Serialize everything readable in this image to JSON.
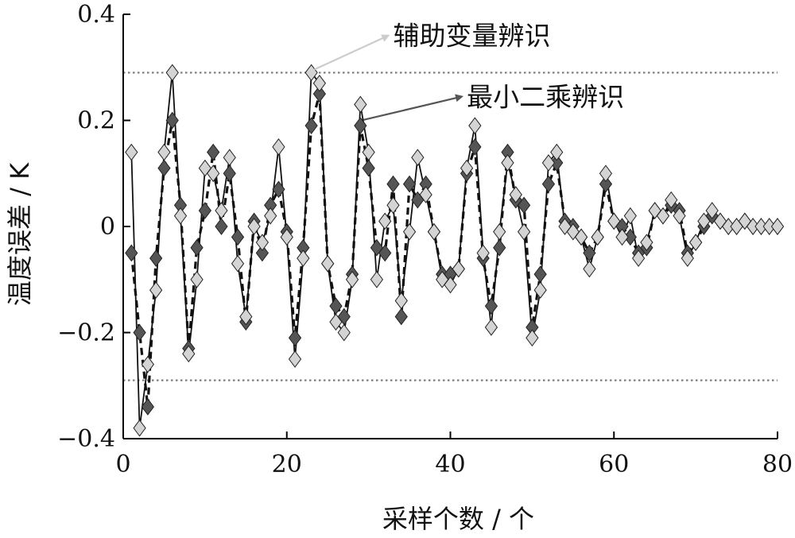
{
  "chart_data": {
    "type": "line",
    "xlabel": "采样个数 / 个",
    "ylabel": "温度误差 / K",
    "xlim": [
      0,
      80
    ],
    "ylim": [
      -0.4,
      0.4
    ],
    "xticks": [
      0,
      20,
      40,
      60,
      80
    ],
    "yticks": [
      -0.4,
      -0.2,
      0,
      0.2,
      0.4
    ],
    "xtick_labels": [
      "0",
      "20",
      "40",
      "60",
      "80"
    ],
    "ytick_labels": [
      "−0.4",
      "−0.2",
      "0",
      "0.2",
      "0.4"
    ],
    "grid": false,
    "reference_lines": [
      0.29,
      -0.29
    ],
    "series": [
      {
        "name": "辅助变量辨识",
        "style": "solid",
        "marker_color": "#d4d4d4",
        "x": [
          1,
          2,
          3,
          4,
          5,
          6,
          7,
          8,
          9,
          10,
          11,
          12,
          13,
          14,
          15,
          16,
          17,
          18,
          19,
          20,
          21,
          22,
          23,
          24,
          25,
          26,
          27,
          28,
          29,
          30,
          31,
          32,
          33,
          34,
          35,
          36,
          37,
          38,
          39,
          40,
          41,
          42,
          43,
          44,
          45,
          46,
          47,
          48,
          49,
          50,
          51,
          52,
          53,
          54,
          55,
          56,
          57,
          58,
          59,
          60,
          61,
          62,
          63,
          64,
          65,
          66,
          67,
          68,
          69,
          70,
          71,
          72,
          73,
          74,
          75,
          76,
          77,
          78,
          79,
          80
        ],
        "values": [
          0.14,
          -0.38,
          -0.26,
          -0.12,
          0.14,
          0.29,
          0.02,
          -0.24,
          -0.1,
          0.11,
          0.1,
          0.03,
          0.13,
          -0.07,
          -0.17,
          0.0,
          -0.03,
          0.02,
          0.15,
          -0.02,
          -0.25,
          -0.06,
          0.29,
          0.27,
          -0.07,
          -0.18,
          -0.2,
          -0.1,
          0.23,
          0.14,
          -0.1,
          0.01,
          0.04,
          -0.14,
          -0.01,
          0.13,
          0.06,
          -0.01,
          -0.1,
          -0.11,
          -0.08,
          0.11,
          0.19,
          -0.05,
          -0.19,
          -0.01,
          0.12,
          0.06,
          -0.01,
          -0.21,
          -0.12,
          0.12,
          0.14,
          0.0,
          -0.01,
          -0.02,
          -0.08,
          -0.02,
          0.1,
          0.01,
          -0.02,
          0.02,
          -0.06,
          -0.03,
          0.03,
          0.02,
          0.05,
          0.02,
          -0.06,
          -0.03,
          0.01,
          0.03,
          0.01,
          0.0,
          0.0,
          0.01,
          0.0,
          0.0,
          0.0,
          0.0
        ]
      },
      {
        "name": "最小二乘辨识",
        "style": "dashed",
        "marker_color": "#555555",
        "x": [
          1,
          2,
          3,
          4,
          5,
          6,
          7,
          8,
          9,
          10,
          11,
          12,
          13,
          14,
          15,
          16,
          17,
          18,
          19,
          20,
          21,
          22,
          23,
          24,
          25,
          26,
          27,
          28,
          29,
          30,
          31,
          32,
          33,
          34,
          35,
          36,
          37,
          38,
          39,
          40,
          41,
          42,
          43,
          44,
          45,
          46,
          47,
          48,
          49,
          50,
          51,
          52,
          53,
          54,
          55,
          56,
          57,
          58,
          59,
          60,
          61,
          62,
          63,
          64,
          65,
          66,
          67,
          68,
          69,
          70,
          71,
          72,
          73,
          74,
          75,
          76,
          77,
          78,
          79,
          80
        ],
        "values": [
          -0.05,
          -0.2,
          -0.34,
          -0.06,
          0.11,
          0.2,
          0.04,
          -0.23,
          -0.04,
          0.03,
          0.14,
          0.0,
          0.1,
          -0.02,
          -0.18,
          0.01,
          -0.05,
          0.04,
          0.07,
          -0.01,
          -0.21,
          -0.04,
          0.19,
          0.25,
          -0.07,
          -0.15,
          -0.17,
          -0.09,
          0.19,
          0.11,
          -0.04,
          -0.05,
          0.08,
          -0.17,
          0.08,
          0.05,
          0.08,
          -0.01,
          -0.09,
          -0.09,
          -0.08,
          0.1,
          0.15,
          -0.06,
          -0.15,
          -0.04,
          0.14,
          0.05,
          0.04,
          -0.19,
          -0.09,
          0.08,
          0.12,
          0.01,
          0.0,
          -0.02,
          -0.05,
          -0.02,
          0.08,
          0.01,
          0.0,
          -0.02,
          -0.05,
          -0.04,
          0.03,
          0.02,
          0.04,
          0.03,
          -0.05,
          -0.03,
          0.0,
          0.02,
          0.01,
          0.0,
          0.0,
          0.01,
          0.0,
          0.0,
          0.0,
          0.0
        ]
      }
    ],
    "annotations": [
      {
        "text": "辅助变量辨识",
        "series_index": 0,
        "point_x": 23,
        "point_y": 0.29,
        "label_at": [
          33,
          0.36
        ],
        "arrow_color": "#cccccc"
      },
      {
        "text": "最小二乘辨识",
        "series_index": 1,
        "point_x": 29,
        "point_y": 0.195,
        "label_at": [
          42,
          0.245
        ],
        "arrow_color": "#555555"
      }
    ]
  }
}
